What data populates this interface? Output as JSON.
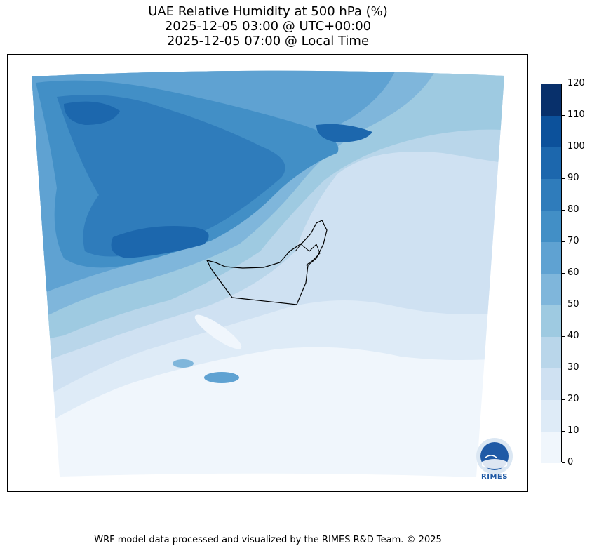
{
  "title": {
    "line1": "UAE Relative Humidity at 500 hPa (%)",
    "line2": "2025-12-05 03:00 @ UTC+00:00",
    "line3": "2025-12-05 07:00 @ Local Time"
  },
  "colorbar": {
    "ticks": [
      "0",
      "10",
      "20",
      "30",
      "40",
      "50",
      "60",
      "70",
      "80",
      "90",
      "100",
      "110",
      "120"
    ],
    "levels": [
      0,
      10,
      20,
      30,
      40,
      50,
      60,
      70,
      80,
      90,
      100,
      110,
      120
    ],
    "colors": [
      "#f0f6fc",
      "#deebf7",
      "#cfe1f2",
      "#b9d6ea",
      "#9ecae1",
      "#7fb6db",
      "#5fa2d2",
      "#428fc6",
      "#2f7cbb",
      "#1c67ad",
      "#0c519b",
      "#08306b"
    ]
  },
  "map": {
    "region": "UAE",
    "variable": "Relative Humidity",
    "level": "500 hPa",
    "units": "%"
  },
  "logo": {
    "text": "RIMES"
  },
  "footer": "WRF model data processed and visualized by the RIMES R&D Team. © 2025"
}
